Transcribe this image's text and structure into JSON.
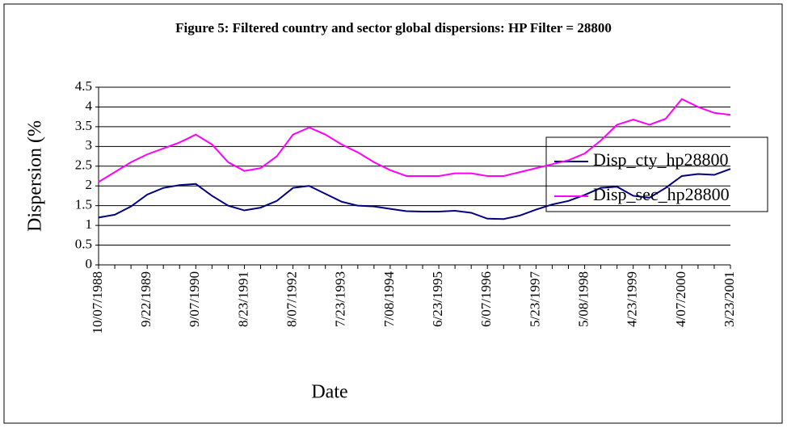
{
  "chart_data": {
    "type": "line",
    "title": "Figure 5: Filtered country and sector global dispersions: HP Filter = 28800",
    "x_label": "Date",
    "y_label": "Dispersion (%",
    "categories": [
      "10/07/1988",
      null,
      null,
      "9/22/1989",
      null,
      null,
      "9/07/1990",
      null,
      null,
      "8/23/1991",
      null,
      null,
      "8/07/1992",
      null,
      null,
      "7/23/1993",
      null,
      null,
      "7/08/1994",
      null,
      null,
      "6/23/1995",
      null,
      null,
      "6/07/1996",
      null,
      null,
      "5/23/1997",
      null,
      null,
      "5/08/1998",
      null,
      null,
      "4/23/1999",
      null,
      null,
      "4/07/2000",
      null,
      null,
      "3/23/2001"
    ],
    "series": [
      {
        "name": "Disp_cty_hp28800",
        "color": "#000080",
        "values": [
          1.2,
          1.27,
          1.48,
          1.78,
          1.95,
          2.02,
          2.05,
          1.75,
          1.5,
          1.38,
          1.45,
          1.62,
          1.95,
          2.0,
          1.8,
          1.6,
          1.5,
          1.48,
          1.42,
          1.36,
          1.35,
          1.35,
          1.37,
          1.32,
          1.17,
          1.16,
          1.25,
          1.4,
          1.53,
          1.62,
          1.77,
          1.95,
          1.98,
          1.75,
          1.7,
          1.95,
          2.25,
          2.3,
          2.28,
          2.43
        ]
      },
      {
        "name": "Disp_sec_hp28800",
        "color": "#ff00ff",
        "values": [
          2.1,
          2.35,
          2.6,
          2.8,
          2.95,
          3.1,
          3.3,
          3.05,
          2.6,
          2.38,
          2.45,
          2.75,
          3.3,
          3.48,
          3.3,
          3.05,
          2.85,
          2.6,
          2.4,
          2.25,
          2.25,
          2.25,
          2.32,
          2.32,
          2.25,
          2.25,
          2.35,
          2.45,
          2.55,
          2.65,
          2.82,
          3.15,
          3.55,
          3.68,
          3.55,
          3.7,
          4.2,
          4.0,
          3.85,
          3.8
        ]
      }
    ],
    "ylim": [
      0,
      4.5
    ],
    "yticks": [
      0,
      0.5,
      1,
      1.5,
      2,
      2.5,
      3,
      3.5,
      4,
      4.5
    ],
    "grid": true,
    "legend": "right"
  }
}
